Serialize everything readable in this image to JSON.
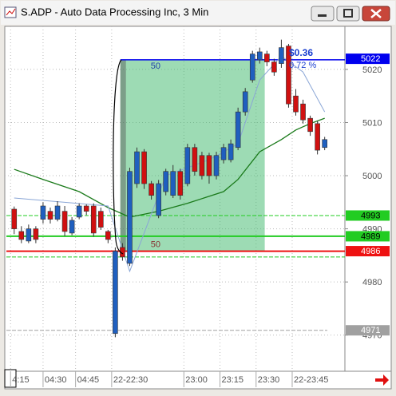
{
  "chart_data": {
    "type": "candlestick",
    "title": "S.ADP - Auto Data Processing Inc, 3 Min",
    "up_color": "#1f5fbf",
    "down_color": "#d01010",
    "grid": true,
    "ylim": [
      4963.2,
      5028.1
    ],
    "yticks": [
      4970,
      4980,
      4990,
      5000,
      5010,
      5020
    ],
    "xlim": [
      -1.3,
      45.8
    ],
    "xticks": [
      {
        "value": 0,
        "label": "4:15"
      },
      {
        "value": 4.5,
        "label": "04:30"
      },
      {
        "value": 9,
        "label": "04:45"
      },
      {
        "value": 14,
        "label": "22-22:30"
      },
      {
        "value": 24,
        "label": "23:00"
      },
      {
        "value": 29,
        "label": "23:15"
      },
      {
        "value": 34,
        "label": "23:30"
      },
      {
        "value": 39,
        "label": "22-23:45"
      }
    ],
    "open": [
      4993.7,
      4989.5,
      4987.7,
      4990.0,
      4991.8,
      4993.3,
      4991.8,
      4993.3,
      4989.2,
      4992.2,
      4994.3,
      4994.3,
      4993.3,
      4989.5,
      4970.3,
      4986.5,
      4983.5,
      4998.5,
      5004.5,
      4998.5,
      4992.5,
      4997.0,
      4996.3,
      5000.8,
      4998.5,
      5005.3,
      5003.8,
      5003.8,
      5000.0,
      5003.0,
      5003.0,
      5005.3,
      5012.0,
      5018.0,
      5021.8,
      5022.9,
      5021.4,
      5021.1,
      5024.4,
      5015.0,
      5013.5,
      5010.8,
      5009.8,
      5005.3
    ],
    "high": [
      4994.2,
      4990.5,
      4990.8,
      4990.5,
      4995.0,
      4994.0,
      4995.2,
      4994.3,
      4992.2,
      4994.8,
      4994.6,
      4994.8,
      4994.0,
      4989.8,
      4986.5,
      4987.3,
      5001.5,
      5005.3,
      5005.0,
      4999.0,
      4999.2,
      5001.3,
      5002.0,
      5001.3,
      5006.0,
      5006.0,
      5004.5,
      5004.3,
      5004.5,
      5006.0,
      5006.8,
      5012.8,
      5016.5,
      5023.5,
      5024.1,
      5023.5,
      5022.0,
      5025.6,
      5024.8,
      5016.3,
      5014.3,
      5011.3,
      5010.3,
      5007.3
    ],
    "low": [
      4989.0,
      4987.3,
      4987.3,
      4987.3,
      4991.0,
      4991.0,
      4991.4,
      4988.6,
      4988.8,
      4991.8,
      4992.6,
      4988.5,
      4989.8,
      4987.3,
      4969.6,
      4984.0,
      4983.0,
      4997.7,
      4997.5,
      4995.5,
      4992.0,
      4996.3,
      4995.8,
      4995.5,
      4998.0,
      5000.0,
      4999.3,
      4998.5,
      4999.3,
      5002.3,
      5002.5,
      5004.8,
      5011.3,
      5017.5,
      5021.1,
      5020.6,
      5018.8,
      5020.3,
      5012.8,
      5011.3,
      5009.8,
      5007.5,
      5004.0,
      5004.8
    ],
    "close": [
      4990.0,
      4988.0,
      4990.0,
      4988.0,
      4994.3,
      4991.8,
      4994.3,
      4989.5,
      4991.6,
      4994.3,
      4993.3,
      4989.2,
      4990.3,
      4988.0,
      4985.8,
      4984.7,
      5000.8,
      5004.5,
      4998.5,
      4996.3,
      4998.5,
      5000.8,
      5000.8,
      4996.3,
      5005.3,
      5000.8,
      5000.0,
      5000.0,
      5003.8,
      5005.3,
      5006.0,
      5012.0,
      5015.8,
      5022.9,
      5023.3,
      5021.4,
      5019.5,
      5024.1,
      5013.5,
      5012.0,
      5010.5,
      5008.3,
      5004.8,
      5006.8
    ],
    "series": [
      {
        "color": "#1a7a1a",
        "x": [
          0,
          4,
          9,
          13,
          16,
          20,
          24,
          29,
          31,
          34,
          37,
          39,
          41,
          43
        ],
        "values": [
          5001.2,
          4999.3,
          4997.0,
          4994.0,
          4992.2,
          4993.3,
          4994.8,
          4997.0,
          4999.3,
          5004.5,
          5006.8,
          5008.6,
          5009.8,
          5010.8
        ]
      },
      {
        "color": "#8aa6d6",
        "x": [
          0,
          13,
          16,
          21,
          27,
          31,
          34,
          37,
          40,
          43
        ],
        "values": [
          4995.8,
          4994.3,
          4982.0,
          5000.0,
          5003.0,
          5006.0,
          5018.0,
          5022.5,
          5019.5,
          5012.0
        ]
      }
    ],
    "levels": [
      {
        "value": 4970.9,
        "label": "4971",
        "color": "#a0a0a0",
        "text_color": "#ffffff",
        "style": "dashed"
      },
      {
        "value": 4992.5,
        "label": "4993",
        "color": "#22cc22",
        "text_color": "#000000",
        "style": "dashed"
      },
      {
        "value": 4988.6,
        "label": "4989",
        "color": "#22cc22",
        "text_color": "#000000",
        "style": "solid"
      },
      {
        "value": 4984.7,
        "color": "#22cc22",
        "style": "dashed"
      },
      {
        "value": 4985.8,
        "label": "4986",
        "color": "#ee1111",
        "text_color": "#ffffff",
        "style": "solid"
      },
      {
        "value": 5022,
        "color": "#0000ee",
        "text_color": "#ffffff",
        "style": "none"
      }
    ],
    "measure": {
      "x_start": 14.7,
      "x_end": 34.7,
      "top": 5021.8,
      "bottom": 4985.8,
      "top_label": "50",
      "bottom_label": "50",
      "change_label": "$0.36",
      "percent_label": "0.72 %"
    }
  }
}
